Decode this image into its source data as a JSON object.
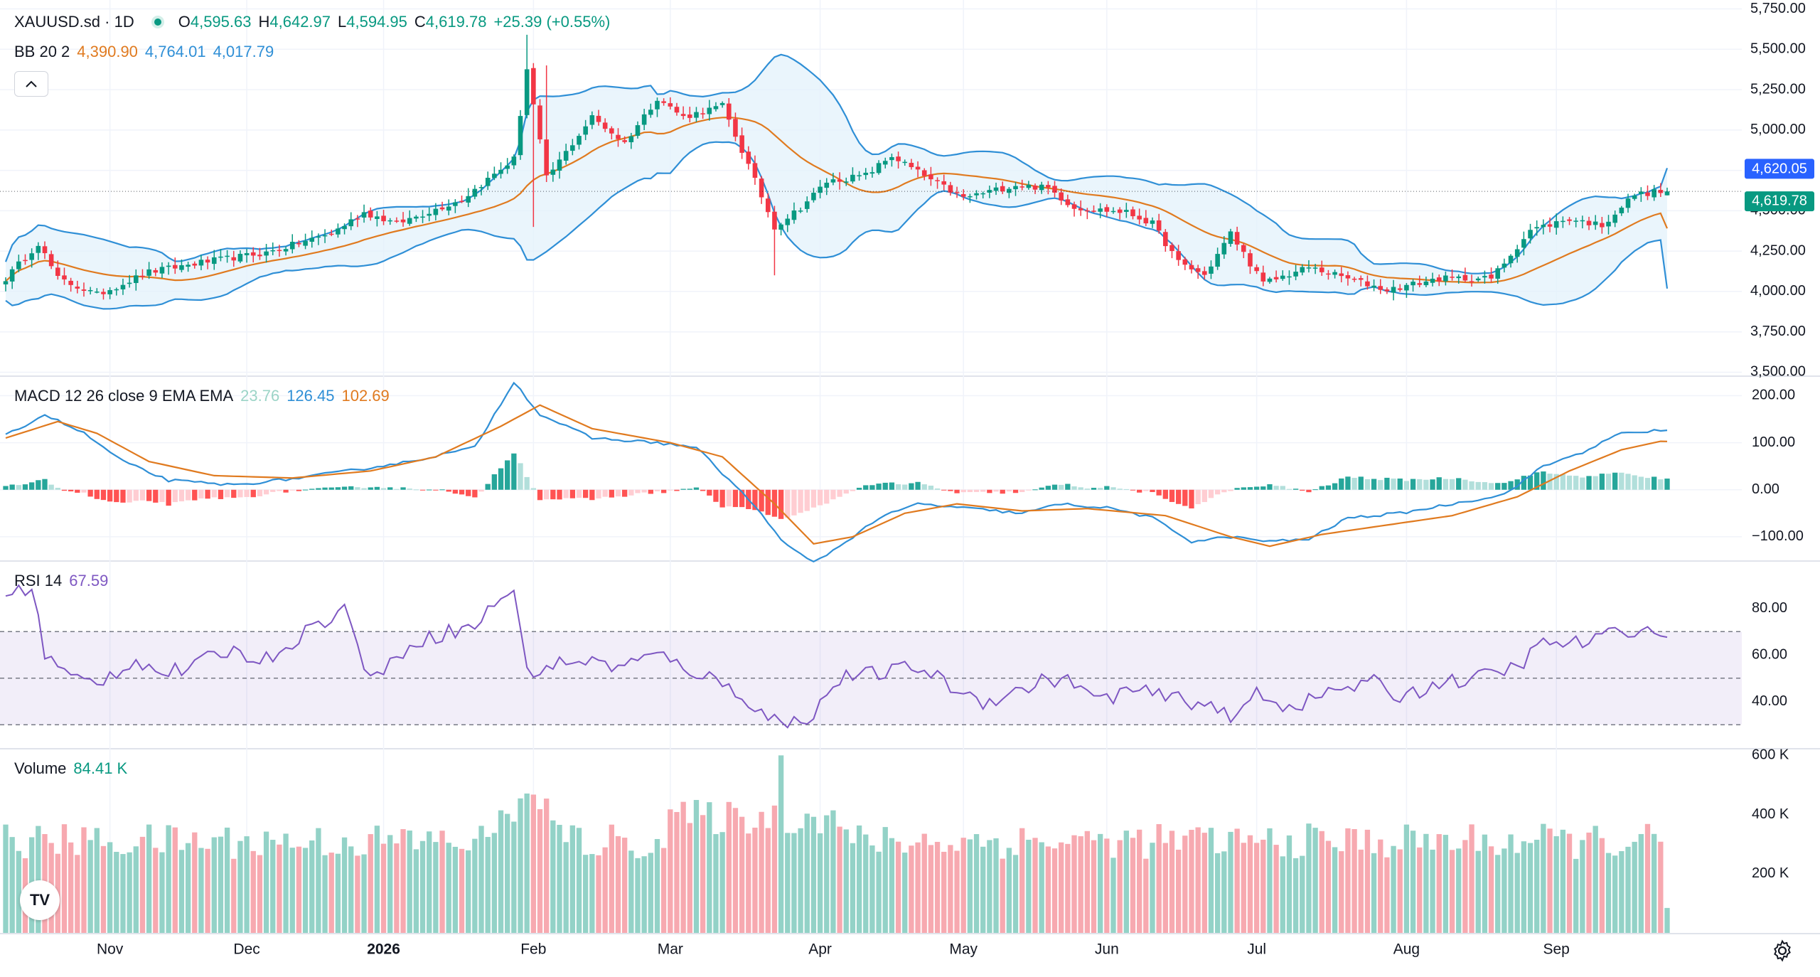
{
  "header": {
    "symbol": "XAUUSD.sd · 1D",
    "open_label": "O",
    "open": "4,595.63",
    "high_label": "H",
    "high": "4,642.97",
    "low_label": "L",
    "low": "4,594.95",
    "close_label": "C",
    "close": "4,619.78",
    "change": "+25.39 (+0.55%)"
  },
  "bb_legend": {
    "label": "BB 20 2",
    "basis": "4,390.90",
    "upper": "4,764.01",
    "lower": "4,017.79"
  },
  "macd_legend": {
    "label": "MACD 12 26 close 9 EMA EMA",
    "hist": "23.76",
    "macd": "126.45",
    "signal": "102.69"
  },
  "rsi_legend": {
    "label": "RSI 14",
    "value": "67.59"
  },
  "volume_legend": {
    "label": "Volume",
    "value": "84.41 K"
  },
  "collapse_icon": "chevron-up-icon",
  "logo_text": "TV",
  "settings_icon": "gear-icon",
  "colors": {
    "up": "#089981",
    "down": "#f23645",
    "upper_band": "#2f8fd6",
    "basis": "#e07a1f",
    "rsi": "#7e57c2"
  },
  "chart_data": [
    {
      "type": "candlestick",
      "title": "XAUUSD.sd · 1D",
      "x_ticks": [
        "Nov",
        "Dec",
        "2026",
        "Feb",
        "Mar",
        "Apr",
        "May",
        "Jun",
        "Jul",
        "Aug",
        "Sep"
      ],
      "y_ticks": [
        "5,750.00",
        "5,500.00",
        "5,250.00",
        "5,000.00",
        "4,750.00",
        "4,500.00",
        "4,250.00",
        "4,000.00",
        "3,750.00",
        "3,500.00"
      ],
      "ylim": [
        3480,
        5770
      ],
      "last_price_labels": {
        "upper_band": "4,620.05",
        "close": "4,619.78"
      },
      "close_anchors": [
        [
          0,
          4080
        ],
        [
          5,
          4300
        ],
        [
          8,
          4080
        ],
        [
          14,
          3980
        ],
        [
          22,
          4120
        ],
        [
          30,
          4180
        ],
        [
          40,
          4240
        ],
        [
          50,
          4360
        ],
        [
          55,
          4490
        ],
        [
          60,
          4420
        ],
        [
          70,
          4570
        ],
        [
          78,
          4820
        ],
        [
          80,
          5380
        ],
        [
          83,
          4700
        ],
        [
          90,
          5080
        ],
        [
          95,
          4920
        ],
        [
          100,
          5200
        ],
        [
          104,
          5080
        ],
        [
          110,
          5150
        ],
        [
          114,
          4780
        ],
        [
          118,
          4400
        ],
        [
          122,
          4520
        ],
        [
          126,
          4680
        ],
        [
          132,
          4720
        ],
        [
          136,
          4840
        ],
        [
          142,
          4690
        ],
        [
          147,
          4580
        ],
        [
          155,
          4660
        ],
        [
          160,
          4640
        ],
        [
          164,
          4520
        ],
        [
          172,
          4490
        ],
        [
          176,
          4420
        ],
        [
          180,
          4180
        ],
        [
          184,
          4100
        ],
        [
          188,
          4360
        ],
        [
          193,
          4050
        ],
        [
          200,
          4150
        ],
        [
          206,
          4080
        ],
        [
          212,
          4010
        ],
        [
          220,
          4080
        ],
        [
          228,
          4080
        ],
        [
          234,
          4380
        ],
        [
          240,
          4450
        ],
        [
          245,
          4410
        ],
        [
          250,
          4600
        ],
        [
          254,
          4620
        ]
      ]
    },
    {
      "type": "line",
      "title": "MACD 12 26 close 9 EMA EMA",
      "y_ticks": [
        "200.00",
        "100.00",
        "0.00",
        "−100.00"
      ],
      "ylim": [
        -150,
        240
      ],
      "macd_anchors": [
        [
          0,
          115
        ],
        [
          6,
          160
        ],
        [
          12,
          120
        ],
        [
          18,
          60
        ],
        [
          25,
          20
        ],
        [
          35,
          10
        ],
        [
          45,
          25
        ],
        [
          55,
          45
        ],
        [
          62,
          60
        ],
        [
          72,
          90
        ],
        [
          78,
          230
        ],
        [
          82,
          160
        ],
        [
          90,
          110
        ],
        [
          100,
          100
        ],
        [
          106,
          90
        ],
        [
          114,
          -20
        ],
        [
          120,
          -120
        ],
        [
          124,
          -155
        ],
        [
          128,
          -120
        ],
        [
          134,
          -60
        ],
        [
          140,
          -30
        ],
        [
          148,
          -40
        ],
        [
          156,
          -50
        ],
        [
          162,
          -30
        ],
        [
          170,
          -40
        ],
        [
          176,
          -60
        ],
        [
          182,
          -110
        ],
        [
          188,
          -100
        ],
        [
          194,
          -110
        ],
        [
          200,
          -105
        ],
        [
          206,
          -60
        ],
        [
          214,
          -50
        ],
        [
          222,
          -30
        ],
        [
          230,
          -10
        ],
        [
          236,
          50
        ],
        [
          242,
          80
        ],
        [
          248,
          120
        ],
        [
          254,
          126
        ]
      ],
      "signal_anchors": [
        [
          0,
          110
        ],
        [
          8,
          145
        ],
        [
          14,
          120
        ],
        [
          22,
          60
        ],
        [
          32,
          30
        ],
        [
          44,
          25
        ],
        [
          56,
          40
        ],
        [
          66,
          70
        ],
        [
          76,
          135
        ],
        [
          82,
          180
        ],
        [
          90,
          130
        ],
        [
          102,
          100
        ],
        [
          110,
          70
        ],
        [
          118,
          -30
        ],
        [
          124,
          -115
        ],
        [
          130,
          -100
        ],
        [
          138,
          -50
        ],
        [
          146,
          -30
        ],
        [
          156,
          -45
        ],
        [
          166,
          -40
        ],
        [
          178,
          -55
        ],
        [
          188,
          -100
        ],
        [
          194,
          -120
        ],
        [
          202,
          -95
        ],
        [
          212,
          -75
        ],
        [
          222,
          -55
        ],
        [
          232,
          -15
        ],
        [
          240,
          40
        ],
        [
          248,
          85
        ],
        [
          254,
          103
        ]
      ],
      "last_hist": 23.76
    },
    {
      "type": "line",
      "title": "RSI 14",
      "y_ticks": [
        "80.00",
        "60.00",
        "40.00"
      ],
      "ylim": [
        20,
        100
      ],
      "bands": [
        70,
        50,
        30
      ],
      "rsi_anchors": [
        [
          0,
          85
        ],
        [
          4,
          90
        ],
        [
          6,
          60
        ],
        [
          10,
          50
        ],
        [
          14,
          48
        ],
        [
          20,
          58
        ],
        [
          24,
          52
        ],
        [
          28,
          54
        ],
        [
          34,
          62
        ],
        [
          40,
          58
        ],
        [
          46,
          70
        ],
        [
          52,
          80
        ],
        [
          55,
          55
        ],
        [
          58,
          52
        ],
        [
          62,
          65
        ],
        [
          68,
          70
        ],
        [
          72,
          72
        ],
        [
          76,
          85
        ],
        [
          78,
          88
        ],
        [
          80,
          52
        ],
        [
          83,
          55
        ],
        [
          88,
          58
        ],
        [
          94,
          55
        ],
        [
          100,
          60
        ],
        [
          104,
          55
        ],
        [
          108,
          50
        ],
        [
          112,
          45
        ],
        [
          116,
          35
        ],
        [
          120,
          30
        ],
        [
          124,
          35
        ],
        [
          128,
          50
        ],
        [
          134,
          52
        ],
        [
          140,
          55
        ],
        [
          146,
          45
        ],
        [
          150,
          40
        ],
        [
          156,
          45
        ],
        [
          160,
          50
        ],
        [
          164,
          48
        ],
        [
          168,
          40
        ],
        [
          172,
          45
        ],
        [
          178,
          42
        ],
        [
          182,
          40
        ],
        [
          186,
          38
        ],
        [
          188,
          30
        ],
        [
          192,
          45
        ],
        [
          196,
          38
        ],
        [
          200,
          40
        ],
        [
          204,
          45
        ],
        [
          210,
          48
        ],
        [
          214,
          42
        ],
        [
          220,
          48
        ],
        [
          226,
          50
        ],
        [
          232,
          55
        ],
        [
          236,
          65
        ],
        [
          242,
          65
        ],
        [
          248,
          70
        ],
        [
          251,
          72
        ],
        [
          254,
          67.59
        ]
      ]
    },
    {
      "type": "bar",
      "title": "Volume",
      "y_ticks": [
        "600 K",
        "400 K",
        "200 K"
      ],
      "ylim": [
        0,
        620000
      ],
      "last_value": 84410
    }
  ]
}
